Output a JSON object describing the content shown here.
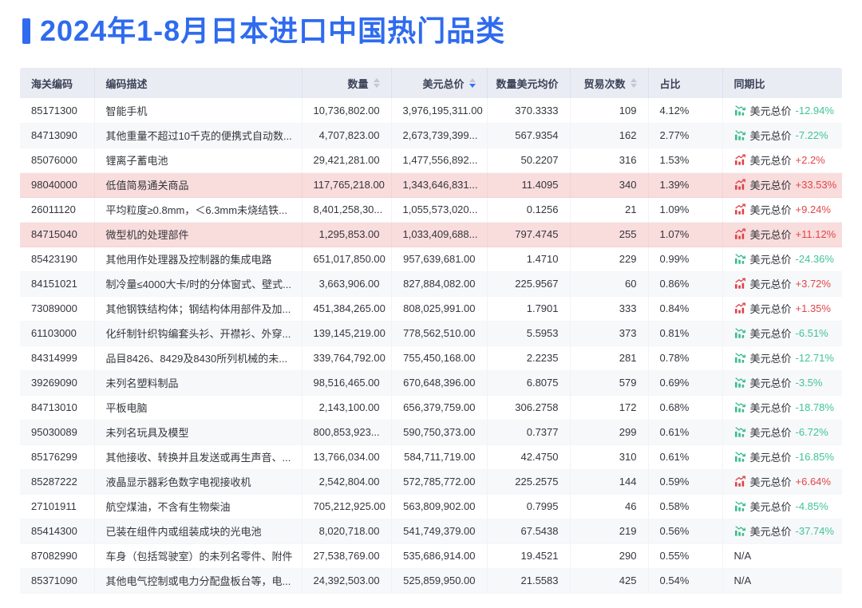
{
  "page_title": "2024年1-8月日本进口中国热门品类",
  "colors": {
    "accent_blue": "#2f6bee",
    "sort_active_blue": "#3370ff",
    "header_bg": "#eaecf4",
    "stripe_bg": "#f7f8fa",
    "highlight_row_bg": "#f9dcdc",
    "trend_up_red": "#e0464a",
    "trend_down_green": "#41c495"
  },
  "table": {
    "columns": [
      {
        "label": "海关编码",
        "sortable": false,
        "sort_state": "none",
        "align": "left"
      },
      {
        "label": "编码描述",
        "sortable": false,
        "sort_state": "none",
        "align": "left"
      },
      {
        "label": "数量",
        "sortable": true,
        "sort_state": "none",
        "align": "right"
      },
      {
        "label": "美元总价",
        "sortable": true,
        "sort_state": "desc",
        "align": "right"
      },
      {
        "label": "数量美元均价",
        "sortable": false,
        "sort_state": "none",
        "align": "right"
      },
      {
        "label": "贸易次数",
        "sortable": true,
        "sort_state": "none",
        "align": "right"
      },
      {
        "label": "占比",
        "sortable": false,
        "sort_state": "none",
        "align": "left"
      },
      {
        "label": "同期比",
        "sortable": false,
        "sort_state": "none",
        "align": "left"
      }
    ],
    "yoy_metric_label": "美元总价",
    "na_label": "N/A",
    "rows": [
      {
        "code": "85171300",
        "desc": "智能手机",
        "qty": "10,736,802.00",
        "usd": "3,976,195,311.00",
        "avg": "370.3333",
        "trades": "109",
        "share": "4.12%",
        "yoy": {
          "value": "-12.94%",
          "trend": "down"
        },
        "highlight": false
      },
      {
        "code": "84713090",
        "desc": "其他重量不超过10千克的便携式自动数...",
        "qty": "4,707,823.00",
        "usd": "2,673,739,399...",
        "avg": "567.9354",
        "trades": "162",
        "share": "2.77%",
        "yoy": {
          "value": "-7.22%",
          "trend": "down"
        },
        "highlight": false
      },
      {
        "code": "85076000",
        "desc": "锂离子蓄电池",
        "qty": "29,421,281.00",
        "usd": "1,477,556,892...",
        "avg": "50.2207",
        "trades": "316",
        "share": "1.53%",
        "yoy": {
          "value": "+2.2%",
          "trend": "up"
        },
        "highlight": false
      },
      {
        "code": "98040000",
        "desc": "低值简易通关商品",
        "qty": "117,765,218.00",
        "usd": "1,343,646,831...",
        "avg": "11.4095",
        "trades": "340",
        "share": "1.39%",
        "yoy": {
          "value": "+33.53%",
          "trend": "up"
        },
        "highlight": true
      },
      {
        "code": "26011120",
        "desc": "平均粒度≥0.8mm，＜6.3mm未烧结铁...",
        "qty": "8,401,258,30...",
        "usd": "1,055,573,020...",
        "avg": "0.1256",
        "trades": "21",
        "share": "1.09%",
        "yoy": {
          "value": "+9.24%",
          "trend": "up"
        },
        "highlight": false
      },
      {
        "code": "84715040",
        "desc": "微型机的处理部件",
        "qty": "1,295,853.00",
        "usd": "1,033,409,688...",
        "avg": "797.4745",
        "trades": "255",
        "share": "1.07%",
        "yoy": {
          "value": "+11.12%",
          "trend": "up"
        },
        "highlight": true
      },
      {
        "code": "85423190",
        "desc": "其他用作处理器及控制器的集成电路",
        "qty": "651,017,850.00",
        "usd": "957,639,681.00",
        "avg": "1.4710",
        "trades": "229",
        "share": "0.99%",
        "yoy": {
          "value": "-24.36%",
          "trend": "down"
        },
        "highlight": false
      },
      {
        "code": "84151021",
        "desc": "制冷量≤4000大卡/时的分体窗式、壁式...",
        "qty": "3,663,906.00",
        "usd": "827,884,082.00",
        "avg": "225.9567",
        "trades": "60",
        "share": "0.86%",
        "yoy": {
          "value": "+3.72%",
          "trend": "up"
        },
        "highlight": false
      },
      {
        "code": "73089000",
        "desc": "其他钢铁结构体；钢结构体用部件及加...",
        "qty": "451,384,265.00",
        "usd": "808,025,991.00",
        "avg": "1.7901",
        "trades": "333",
        "share": "0.84%",
        "yoy": {
          "value": "+1.35%",
          "trend": "up"
        },
        "highlight": false
      },
      {
        "code": "61103000",
        "desc": "化纤制针织钩编套头衫、开襟衫、外穿...",
        "qty": "139,145,219.00",
        "usd": "778,562,510.00",
        "avg": "5.5953",
        "trades": "373",
        "share": "0.81%",
        "yoy": {
          "value": "-6.51%",
          "trend": "down"
        },
        "highlight": false
      },
      {
        "code": "84314999",
        "desc": "品目8426、8429及8430所列机械的未...",
        "qty": "339,764,792.00",
        "usd": "755,450,168.00",
        "avg": "2.2235",
        "trades": "281",
        "share": "0.78%",
        "yoy": {
          "value": "-12.71%",
          "trend": "down"
        },
        "highlight": false
      },
      {
        "code": "39269090",
        "desc": "未列名塑料制品",
        "qty": "98,516,465.00",
        "usd": "670,648,396.00",
        "avg": "6.8075",
        "trades": "579",
        "share": "0.69%",
        "yoy": {
          "value": "-3.5%",
          "trend": "down"
        },
        "highlight": false
      },
      {
        "code": "84713010",
        "desc": "平板电脑",
        "qty": "2,143,100.00",
        "usd": "656,379,759.00",
        "avg": "306.2758",
        "trades": "172",
        "share": "0.68%",
        "yoy": {
          "value": "-18.78%",
          "trend": "down"
        },
        "highlight": false
      },
      {
        "code": "95030089",
        "desc": "未列名玩具及模型",
        "qty": "800,853,923...",
        "usd": "590,750,373.00",
        "avg": "0.7377",
        "trades": "299",
        "share": "0.61%",
        "yoy": {
          "value": "-6.72%",
          "trend": "down"
        },
        "highlight": false
      },
      {
        "code": "85176299",
        "desc": "其他接收、转换并且发送或再生声音、...",
        "qty": "13,766,034.00",
        "usd": "584,711,719.00",
        "avg": "42.4750",
        "trades": "310",
        "share": "0.61%",
        "yoy": {
          "value": "-16.85%",
          "trend": "down"
        },
        "highlight": false
      },
      {
        "code": "85287222",
        "desc": "液晶显示器彩色数字电视接收机",
        "qty": "2,542,804.00",
        "usd": "572,785,772.00",
        "avg": "225.2575",
        "trades": "144",
        "share": "0.59%",
        "yoy": {
          "value": "+6.64%",
          "trend": "up"
        },
        "highlight": false
      },
      {
        "code": "27101911",
        "desc": "航空煤油，不含有生物柴油",
        "qty": "705,212,925.00",
        "usd": "563,809,902.00",
        "avg": "0.7995",
        "trades": "46",
        "share": "0.58%",
        "yoy": {
          "value": "-4.85%",
          "trend": "down"
        },
        "highlight": false
      },
      {
        "code": "85414300",
        "desc": "已装在组件内或组装成块的光电池",
        "qty": "8,020,718.00",
        "usd": "541,749,379.00",
        "avg": "67.5438",
        "trades": "219",
        "share": "0.56%",
        "yoy": {
          "value": "-37.74%",
          "trend": "down"
        },
        "highlight": false
      },
      {
        "code": "87082990",
        "desc": "车身（包括驾驶室）的未列名零件、附件",
        "qty": "27,538,769.00",
        "usd": "535,686,914.00",
        "avg": "19.4521",
        "trades": "290",
        "share": "0.55%",
        "yoy": {
          "value": "N/A",
          "trend": "none"
        },
        "highlight": false
      },
      {
        "code": "85371090",
        "desc": "其他电气控制或电力分配盘板台等，电...",
        "qty": "24,392,503.00",
        "usd": "525,859,950.00",
        "avg": "21.5583",
        "trades": "425",
        "share": "0.54%",
        "yoy": {
          "value": "N/A",
          "trend": "none"
        },
        "highlight": false
      }
    ]
  }
}
